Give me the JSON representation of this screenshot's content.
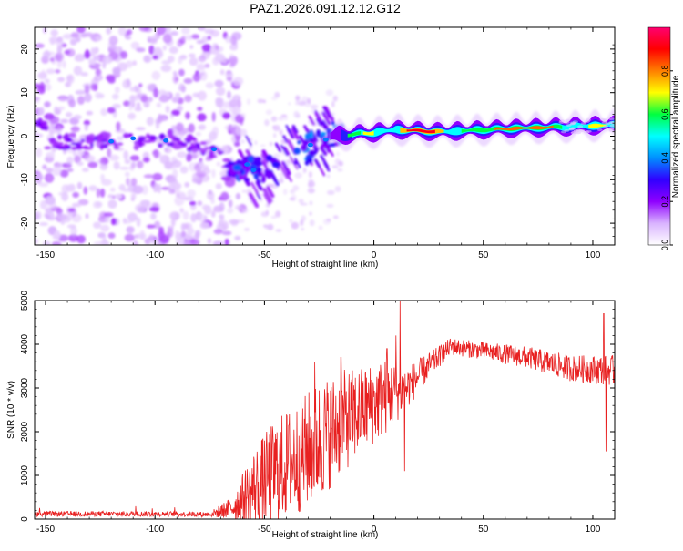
{
  "title": "PAZ1.2026.091.12.12.G12",
  "chart_data": [
    {
      "type": "heatmap",
      "title": "PAZ1.2026.091.12.12.G12",
      "xlabel": "Height of straight line (km)",
      "ylabel": "Frequency (Hz)",
      "xlim": [
        -155,
        110
      ],
      "ylim": [
        -25,
        25
      ],
      "xticks": [
        -150,
        -100,
        -50,
        0,
        50,
        100
      ],
      "yticks": [
        -20,
        -10,
        0,
        10,
        20
      ],
      "colorbar": {
        "label": "Normalized spectral amplitude",
        "range": [
          0,
          1
        ],
        "ticks": [
          "0.0",
          "0.2",
          "0.4",
          "0.6",
          "0.8"
        ],
        "tick_values": [
          0,
          0.2,
          0.4,
          0.6,
          0.8
        ],
        "colors": [
          "#ffffff",
          "#d9b3ff",
          "#8f00ff",
          "#3000ff",
          "#0090ff",
          "#00ffff",
          "#00ff40",
          "#ffff00",
          "#ff7f00",
          "#ff0000",
          "#ff0070"
        ]
      },
      "ridge": [
        {
          "x": -150,
          "f": -1.5
        },
        {
          "x": -120,
          "f": -1.2
        },
        {
          "x": -100,
          "f": -1.0
        },
        {
          "x": -80,
          "f": -1.8
        },
        {
          "x": -62,
          "f": -7.5
        },
        {
          "x": -50,
          "f": -8.0
        },
        {
          "x": -30,
          "f": -3.0
        },
        {
          "x": -20,
          "f": 0.0
        },
        {
          "x": 0,
          "f": 0.8
        },
        {
          "x": 10,
          "f": 1.5
        },
        {
          "x": 30,
          "f": 1.0
        },
        {
          "x": 60,
          "f": 1.7
        },
        {
          "x": 90,
          "f": 2.2
        },
        {
          "x": 110,
          "f": 2.6
        }
      ]
    },
    {
      "type": "line",
      "xlabel": "Height of straight line (km)",
      "ylabel": "SNR (10 * v/v)",
      "xlim": [
        -155,
        110
      ],
      "ylim": [
        0,
        5000
      ],
      "xticks": [
        -150,
        -100,
        -50,
        0,
        50,
        100
      ],
      "yticks": [
        0,
        1000,
        2000,
        3000,
        4000,
        5000
      ],
      "series": [
        {
          "name": "SNR",
          "color": "#e82020",
          "envelope": [
            {
              "x": -155,
              "mean": 120,
              "spread": 60
            },
            {
              "x": -100,
              "mean": 120,
              "spread": 60
            },
            {
              "x": -75,
              "mean": 110,
              "spread": 60
            },
            {
              "x": -65,
              "mean": 250,
              "spread": 250
            },
            {
              "x": -55,
              "mean": 700,
              "spread": 900
            },
            {
              "x": -45,
              "mean": 1100,
              "spread": 1200
            },
            {
              "x": -35,
              "mean": 1400,
              "spread": 1300
            },
            {
              "x": -25,
              "mean": 1800,
              "spread": 1400
            },
            {
              "x": -15,
              "mean": 2200,
              "spread": 1200
            },
            {
              "x": -5,
              "mean": 2500,
              "spread": 1000
            },
            {
              "x": 5,
              "mean": 2800,
              "spread": 900
            },
            {
              "x": 15,
              "mean": 3000,
              "spread": 500
            },
            {
              "x": 25,
              "mean": 3500,
              "spread": 300
            },
            {
              "x": 35,
              "mean": 3950,
              "spread": 200
            },
            {
              "x": 50,
              "mean": 3850,
              "spread": 200
            },
            {
              "x": 70,
              "mean": 3700,
              "spread": 250
            },
            {
              "x": 90,
              "mean": 3450,
              "spread": 300
            },
            {
              "x": 110,
              "mean": 3400,
              "spread": 350
            }
          ],
          "spikes": [
            {
              "x": 12,
              "y": 5000
            },
            {
              "x": 10,
              "y": 4200
            },
            {
              "x": 6,
              "y": 3900
            },
            {
              "x": -15,
              "y": 3700
            },
            {
              "x": -27,
              "y": 3600
            },
            {
              "x": 105,
              "y": 4700
            },
            {
              "x": 106,
              "y": 1550
            },
            {
              "x": 14,
              "y": 1100
            }
          ]
        }
      ]
    }
  ]
}
